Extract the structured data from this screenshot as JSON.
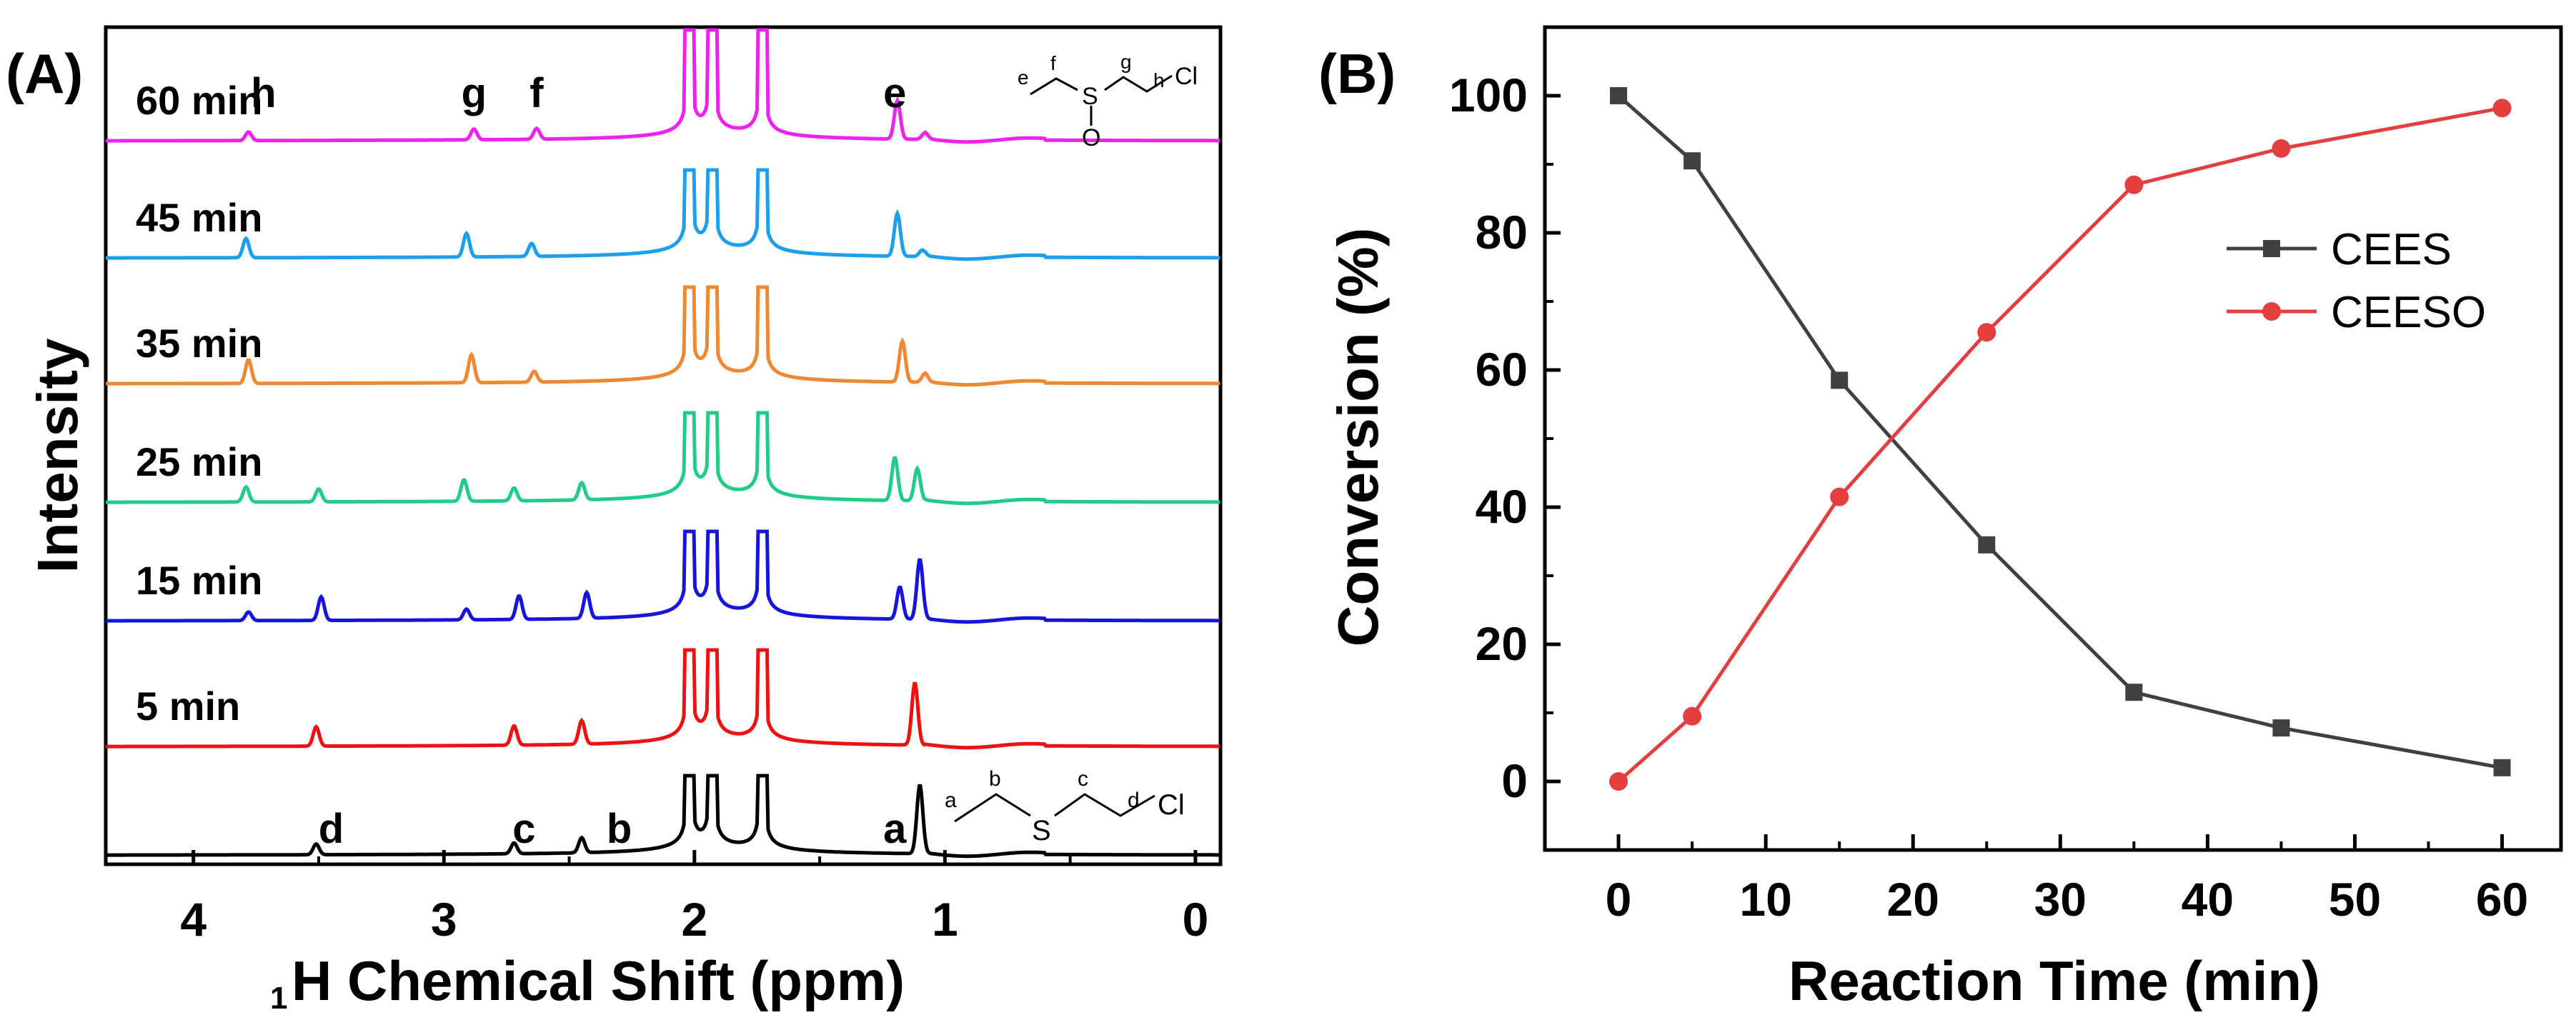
{
  "chart_data": [
    {
      "type": "line",
      "panel_label": "(A)",
      "description_type": "nmr-spectra",
      "xlabel_sup": "1",
      "xlabel": "H Chemical Shift (ppm)",
      "ylabel": "Intensity",
      "xlim": [
        4.35,
        -0.1
      ],
      "x_ticks": [
        4,
        3,
        2,
        1,
        0
      ],
      "solvent_peaks_ppm": [
        2.02,
        1.93,
        1.73
      ],
      "spectra": [
        {
          "time_label": "60 min",
          "color": "#EE22EE",
          "peaks": [
            {
              "ppm": 3.78,
              "h": 0.2
            },
            {
              "ppm": 2.88,
              "h": 0.25
            },
            {
              "ppm": 2.63,
              "h": 0.25
            },
            {
              "ppm": 1.19,
              "h": 0.9
            },
            {
              "ppm": 1.08,
              "h": 0.15
            }
          ],
          "peak_labels": [
            {
              "text": "h",
              "ppm": 3.72
            },
            {
              "text": "g",
              "ppm": 2.88
            },
            {
              "text": "f",
              "ppm": 2.63
            },
            {
              "text": "e",
              "ppm": 1.2
            }
          ]
        },
        {
          "time_label": "45 min",
          "color": "#1E9FEE",
          "peaks": [
            {
              "ppm": 3.79,
              "h": 0.45
            },
            {
              "ppm": 2.91,
              "h": 0.55
            },
            {
              "ppm": 2.65,
              "h": 0.3
            },
            {
              "ppm": 1.19,
              "h": 1.0
            },
            {
              "ppm": 1.09,
              "h": 0.15
            }
          ]
        },
        {
          "time_label": "35 min",
          "color": "#EE8833",
          "peaks": [
            {
              "ppm": 3.78,
              "h": 0.55
            },
            {
              "ppm": 2.89,
              "h": 0.65
            },
            {
              "ppm": 2.64,
              "h": 0.25
            },
            {
              "ppm": 1.17,
              "h": 0.95
            },
            {
              "ppm": 1.08,
              "h": 0.2
            }
          ]
        },
        {
          "time_label": "25 min",
          "color": "#22CC88",
          "peaks": [
            {
              "ppm": 3.79,
              "h": 0.35
            },
            {
              "ppm": 3.5,
              "h": 0.3
            },
            {
              "ppm": 2.92,
              "h": 0.5
            },
            {
              "ppm": 2.72,
              "h": 0.3
            },
            {
              "ppm": 2.45,
              "h": 0.4
            },
            {
              "ppm": 1.2,
              "h": 1.0
            },
            {
              "ppm": 1.11,
              "h": 0.75
            }
          ]
        },
        {
          "time_label": "15 min",
          "color": "#1515DD",
          "peaks": [
            {
              "ppm": 3.78,
              "h": 0.2
            },
            {
              "ppm": 3.49,
              "h": 0.55
            },
            {
              "ppm": 2.91,
              "h": 0.25
            },
            {
              "ppm": 2.7,
              "h": 0.55
            },
            {
              "ppm": 2.43,
              "h": 0.6
            },
            {
              "ppm": 1.18,
              "h": 0.75
            },
            {
              "ppm": 1.1,
              "h": 1.4
            }
          ]
        },
        {
          "time_label": "5 min",
          "color": "#EE1111",
          "peaks": [
            {
              "ppm": 3.51,
              "h": 0.45
            },
            {
              "ppm": 2.72,
              "h": 0.45
            },
            {
              "ppm": 2.45,
              "h": 0.55
            },
            {
              "ppm": 1.12,
              "h": 1.45
            }
          ]
        },
        {
          "time_label": "",
          "color": "#000000",
          "peaks": [
            {
              "ppm": 3.51,
              "h": 0.25
            },
            {
              "ppm": 2.72,
              "h": 0.25
            },
            {
              "ppm": 2.45,
              "h": 0.35
            },
            {
              "ppm": 1.1,
              "h": 1.6
            }
          ],
          "peak_labels": [
            {
              "text": "d",
              "ppm": 3.45
            },
            {
              "text": "c",
              "ppm": 2.68
            },
            {
              "text": "b",
              "ppm": 2.3
            },
            {
              "text": "a",
              "ppm": 1.2
            }
          ]
        }
      ],
      "structures": {
        "product": {
          "atom_labels": [
            "e",
            "f",
            "g",
            "h",
            "S",
            "O",
            "Cl"
          ]
        },
        "reactant": {
          "atom_labels": [
            "a",
            "b",
            "c",
            "d",
            "S",
            "Cl"
          ]
        }
      }
    },
    {
      "type": "line",
      "panel_label": "(B)",
      "xlabel": "Reaction Time (min)",
      "ylabel": "Conversion (%)",
      "xlim": [
        -5,
        64
      ],
      "ylim": [
        -10,
        110
      ],
      "x_ticks": [
        0,
        10,
        20,
        30,
        40,
        50,
        60
      ],
      "y_ticks": [
        0,
        20,
        40,
        60,
        80,
        100
      ],
      "x": [
        0,
        5,
        15,
        25,
        35,
        45,
        60
      ],
      "series": [
        {
          "name": "CEES",
          "color": "#404040",
          "marker": "square",
          "values": [
            100,
            90.5,
            58.5,
            34.5,
            13,
            7.8,
            2
          ]
        },
        {
          "name": "CEESO",
          "color": "#E43F3F",
          "marker": "circle",
          "values": [
            0,
            9.5,
            41.5,
            65.5,
            87,
            92.3,
            98.2
          ]
        }
      ],
      "legend_position": "right"
    }
  ]
}
